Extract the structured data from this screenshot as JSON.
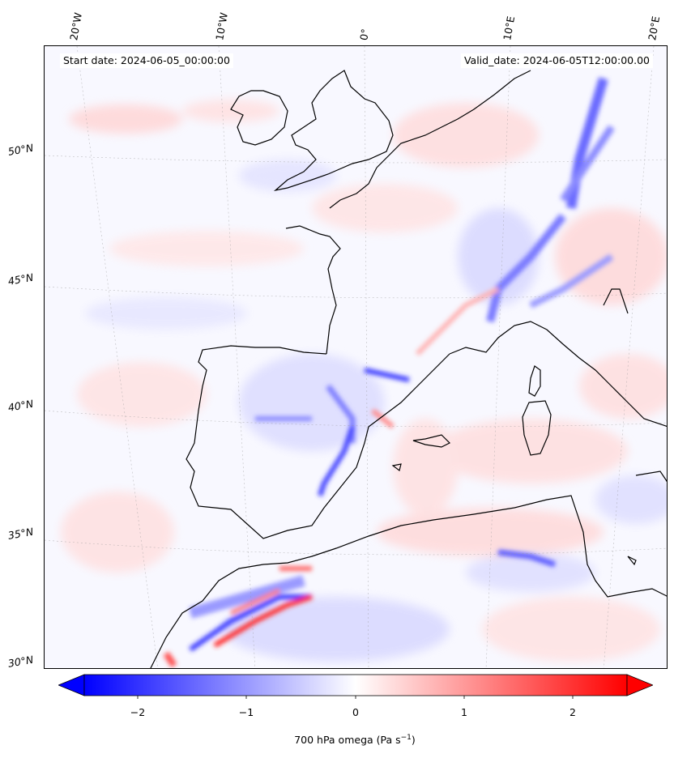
{
  "map": {
    "start_date": "Start date: 2024-06-05_00:00:00",
    "valid_date": "Valid_date: 2024-06-05T12:00:00.00",
    "lon_labels": [
      "20°W",
      "10°W",
      "0°",
      "10°E",
      "20°E"
    ],
    "lat_labels": [
      "50°N",
      "45°N",
      "40°N",
      "35°N",
      "30°N"
    ],
    "colorbar": {
      "label": "700 hPa omega (Pa s",
      "label_sup": "−1",
      "label_end": ")",
      "ticks": [
        "−2",
        "−1",
        "0",
        "1",
        "2"
      ],
      "range": [
        -2.75,
        2.75
      ],
      "colors": {
        "low": "#0000ff",
        "mid": "#ffffff",
        "high": "#ff0000"
      }
    }
  }
}
